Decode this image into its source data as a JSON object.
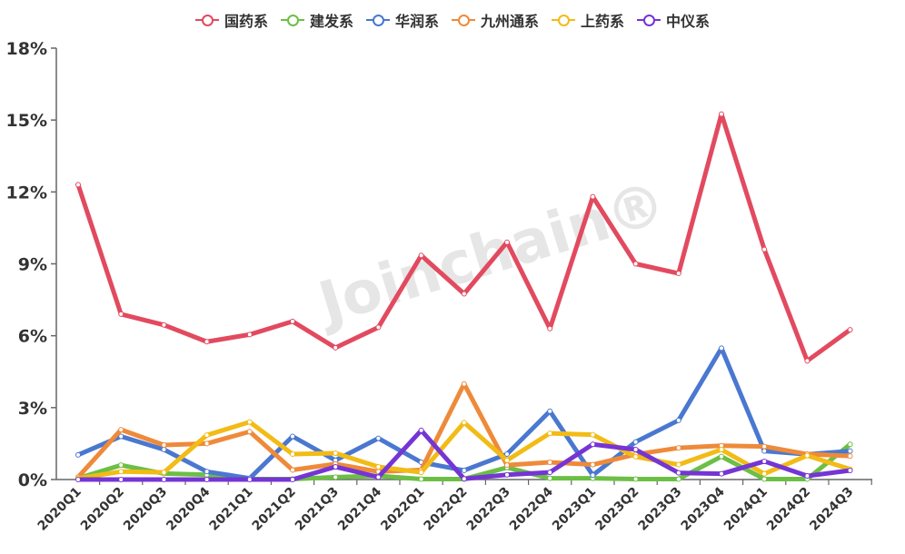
{
  "chart_data": {
    "type": "line",
    "title": "",
    "xlabel": "",
    "ylabel": "",
    "ylim": [
      0,
      18
    ],
    "yticks": [
      "0%",
      "3%",
      "6%",
      "9%",
      "12%",
      "15%",
      "18%"
    ],
    "ytick_values": [
      0,
      3,
      6,
      9,
      12,
      15,
      18
    ],
    "grid": false,
    "legend_position": "top",
    "watermark": "Joinchain®",
    "categories": [
      "2020Q1",
      "2020Q2",
      "2020Q3",
      "2020Q4",
      "2021Q1",
      "2021Q2",
      "2021Q3",
      "2021Q4",
      "2022Q1",
      "2022Q2",
      "2022Q3",
      "2022Q4",
      "2023Q1",
      "2023Q2",
      "2023Q3",
      "2023Q4",
      "2024Q1",
      "2024Q2",
      "2024Q3"
    ],
    "series": [
      {
        "name": "国药系",
        "color": "#e24a5f",
        "values": [
          12.3,
          6.9,
          6.45,
          5.75,
          6.05,
          6.6,
          5.5,
          6.35,
          9.35,
          7.75,
          9.9,
          6.3,
          11.8,
          9.0,
          8.6,
          15.25,
          9.6,
          4.95,
          6.25
        ]
      },
      {
        "name": "建发系",
        "color": "#6cbf45",
        "values": [
          0.05,
          0.6,
          0.25,
          0.2,
          0.02,
          0.02,
          0.1,
          0.15,
          0.02,
          0.02,
          0.5,
          0.05,
          0.05,
          0.02,
          0.02,
          0.96,
          0.02,
          0.02,
          1.47
        ]
      },
      {
        "name": "华润系",
        "color": "#4a78d0",
        "values": [
          1.03,
          1.8,
          1.25,
          0.33,
          0.05,
          1.8,
          0.8,
          1.72,
          0.72,
          0.38,
          1.06,
          2.85,
          0.18,
          1.57,
          2.47,
          5.48,
          1.19,
          1.05,
          1.19
        ]
      },
      {
        "name": "九州通系",
        "color": "#ee8a3a",
        "values": [
          0.1,
          2.08,
          1.44,
          1.5,
          2.0,
          0.4,
          0.65,
          0.33,
          0.4,
          3.99,
          0.6,
          0.72,
          0.62,
          1.05,
          1.32,
          1.41,
          1.38,
          1.06,
          0.98
        ]
      },
      {
        "name": "上药系",
        "color": "#f2bb16",
        "values": [
          0.05,
          0.33,
          0.3,
          1.85,
          2.4,
          1.06,
          1.1,
          0.53,
          0.3,
          2.38,
          0.8,
          1.93,
          1.87,
          0.95,
          0.62,
          1.25,
          0.24,
          1.0,
          0.43
        ]
      },
      {
        "name": "中仪系",
        "color": "#7535d4",
        "values": [
          0.0,
          0.0,
          0.0,
          0.0,
          0.0,
          0.0,
          0.53,
          0.1,
          2.05,
          0.03,
          0.2,
          0.3,
          1.47,
          1.25,
          0.28,
          0.24,
          0.76,
          0.15,
          0.38
        ]
      }
    ]
  }
}
